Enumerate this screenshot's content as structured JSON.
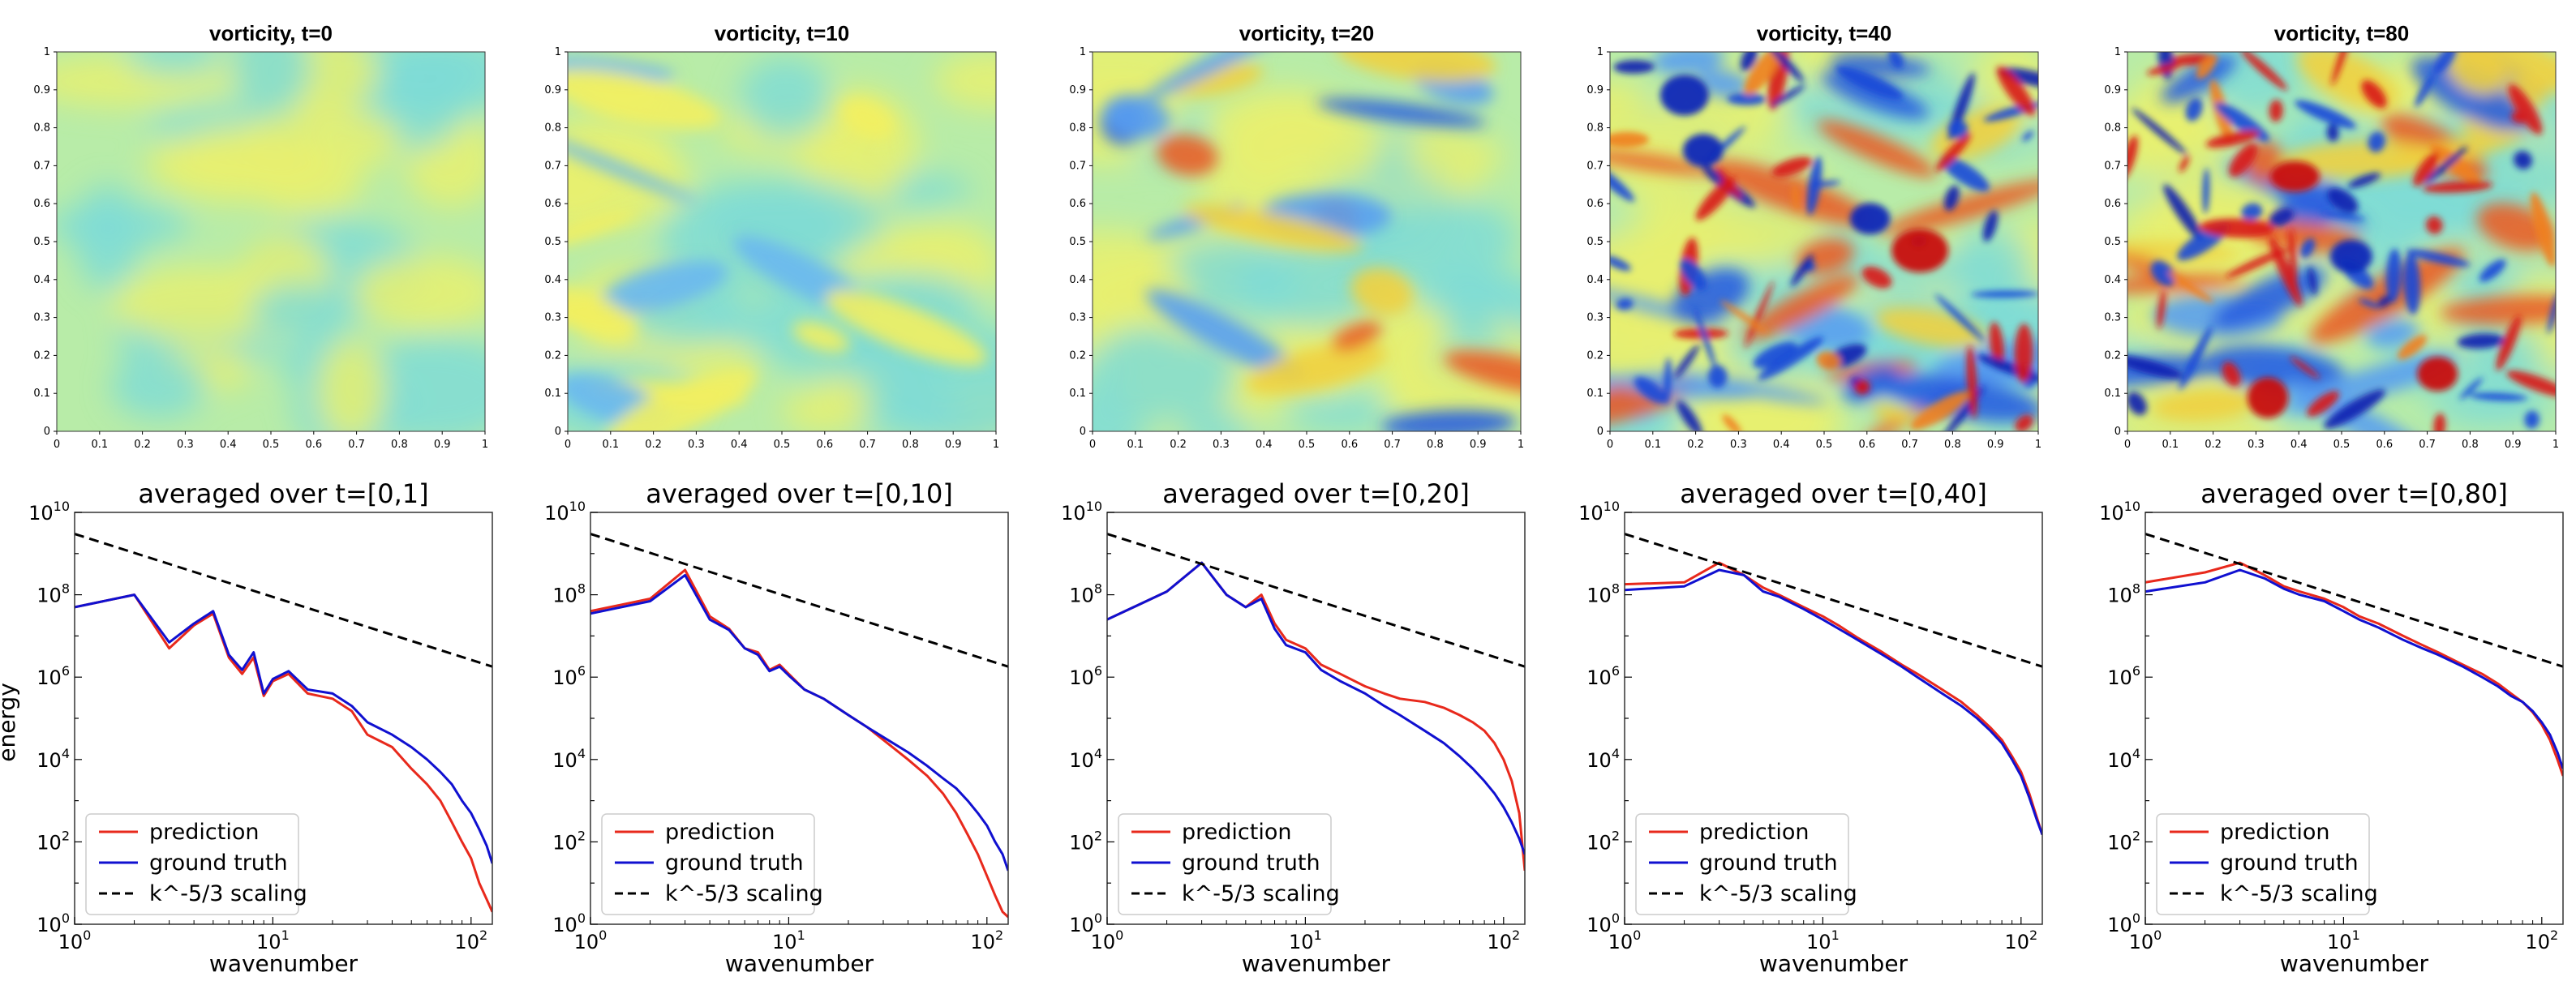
{
  "chart_data": {
    "vorticity_panels": [
      {
        "type": "heatmap",
        "title": "vorticity, t=0",
        "xlim": [
          0,
          1
        ],
        "ylim": [
          0,
          1
        ],
        "xticks": [
          "0",
          "0.1",
          "0.2",
          "0.3",
          "0.4",
          "0.5",
          "0.6",
          "0.7",
          "0.8",
          "0.9",
          "1"
        ],
        "yticks": [
          "0",
          "0.1",
          "0.2",
          "0.3",
          "0.4",
          "0.5",
          "0.6",
          "0.7",
          "0.8",
          "0.9",
          "1"
        ],
        "intensity": 0.15
      },
      {
        "type": "heatmap",
        "title": "vorticity, t=10",
        "xlim": [
          0,
          1
        ],
        "ylim": [
          0,
          1
        ],
        "xticks": [
          "0",
          "0.1",
          "0.2",
          "0.3",
          "0.4",
          "0.5",
          "0.6",
          "0.7",
          "0.8",
          "0.9",
          "1"
        ],
        "yticks": [
          "0",
          "0.1",
          "0.2",
          "0.3",
          "0.4",
          "0.5",
          "0.6",
          "0.7",
          "0.8",
          "0.9",
          "1"
        ],
        "intensity": 0.3
      },
      {
        "type": "heatmap",
        "title": "vorticity, t=20",
        "xlim": [
          0,
          1
        ],
        "ylim": [
          0,
          1
        ],
        "xticks": [
          "0",
          "0.1",
          "0.2",
          "0.3",
          "0.4",
          "0.5",
          "0.6",
          "0.7",
          "0.8",
          "0.9",
          "1"
        ],
        "yticks": [
          "0",
          "0.1",
          "0.2",
          "0.3",
          "0.4",
          "0.5",
          "0.6",
          "0.7",
          "0.8",
          "0.9",
          "1"
        ],
        "intensity": 0.5
      },
      {
        "type": "heatmap",
        "title": "vorticity, t=40",
        "xlim": [
          0,
          1
        ],
        "ylim": [
          0,
          1
        ],
        "xticks": [
          "0",
          "0.1",
          "0.2",
          "0.3",
          "0.4",
          "0.5",
          "0.6",
          "0.7",
          "0.8",
          "0.9",
          "1"
        ],
        "yticks": [
          "0",
          "0.1",
          "0.2",
          "0.3",
          "0.4",
          "0.5",
          "0.6",
          "0.7",
          "0.8",
          "0.9",
          "1"
        ],
        "intensity": 0.9
      },
      {
        "type": "heatmap",
        "title": "vorticity, t=80",
        "xlim": [
          0,
          1
        ],
        "ylim": [
          0,
          1
        ],
        "xticks": [
          "0",
          "0.1",
          "0.2",
          "0.3",
          "0.4",
          "0.5",
          "0.6",
          "0.7",
          "0.8",
          "0.9",
          "1"
        ],
        "yticks": [
          "0",
          "0.1",
          "0.2",
          "0.3",
          "0.4",
          "0.5",
          "0.6",
          "0.7",
          "0.8",
          "0.9",
          "1"
        ],
        "intensity": 1.0
      }
    ],
    "spectrum_panels": [
      {
        "type": "line",
        "title": "averaged over t=[0,1]",
        "xlabel": "wavenumber",
        "ylabel": "energy",
        "xscale": "log",
        "yscale": "log",
        "xlim": [
          1,
          128
        ],
        "ylim": [
          1,
          10000000000.0
        ],
        "legend_position": "lower-left",
        "series": [
          {
            "name": "prediction",
            "color": "#e8291c",
            "k": [
              1,
              2,
              3,
              4,
              5,
              6,
              7,
              8,
              9,
              10,
              12,
              15,
              20,
              25,
              30,
              40,
              50,
              60,
              70,
              80,
              90,
              100,
              110,
              120,
              128
            ],
            "E": [
              50000000.0,
              100000000.0,
              5000000.0,
              18000000.0,
              35000000.0,
              3000000.0,
              1200000.0,
              3000000.0,
              350000.0,
              800000.0,
              1200000.0,
              400000.0,
              300000.0,
              150000.0,
              40000.0,
              20000.0,
              6000.0,
              2500.0,
              1000.0,
              300,
              100,
              40,
              10,
              4,
              2
            ]
          },
          {
            "name": "ground truth",
            "color": "#1010d0",
            "k": [
              1,
              2,
              3,
              4,
              5,
              6,
              7,
              8,
              9,
              10,
              12,
              15,
              20,
              25,
              30,
              40,
              50,
              60,
              70,
              80,
              90,
              100,
              110,
              120,
              128
            ],
            "E": [
              50000000.0,
              100000000.0,
              7000000.0,
              20000000.0,
              40000000.0,
              3500000.0,
              1500000.0,
              4000000.0,
              400000.0,
              900000.0,
              1400000.0,
              500000.0,
              400000.0,
              200000.0,
              80000.0,
              40000.0,
              20000.0,
              10000.0,
              5000.0,
              2500.0,
              1000.0,
              500,
              200,
              80,
              30
            ]
          },
          {
            "name": "k^-5/3 scaling",
            "color": "#000000",
            "dash": true,
            "k": [
              1,
              128
            ],
            "E": [
              3000000000.0,
              1800000.0
            ]
          }
        ]
      },
      {
        "type": "line",
        "title": "averaged over t=[0,10]",
        "xlabel": "wavenumber",
        "ylabel": "",
        "xscale": "log",
        "yscale": "log",
        "xlim": [
          1,
          128
        ],
        "ylim": [
          1,
          10000000000.0
        ],
        "legend_position": "lower-left",
        "series": [
          {
            "name": "prediction",
            "color": "#e8291c",
            "k": [
              1,
              2,
              3,
              4,
              5,
              6,
              7,
              8,
              9,
              10,
              12,
              15,
              20,
              25,
              30,
              40,
              50,
              60,
              70,
              80,
              90,
              100,
              110,
              120,
              128
            ],
            "E": [
              40000000.0,
              80000000.0,
              400000000.0,
              30000000.0,
              15000000.0,
              5000000.0,
              4000000.0,
              1500000.0,
              2000000.0,
              1200000.0,
              500000.0,
              300000.0,
              120000.0,
              60000.0,
              30000.0,
              10000.0,
              4000.0,
              1500.0,
              500,
              150,
              50,
              15,
              5,
              2,
              1.5
            ]
          },
          {
            "name": "ground truth",
            "color": "#1010d0",
            "k": [
              1,
              2,
              3,
              4,
              5,
              6,
              7,
              8,
              9,
              10,
              12,
              15,
              20,
              25,
              30,
              40,
              50,
              60,
              70,
              80,
              90,
              100,
              110,
              120,
              128
            ],
            "E": [
              35000000.0,
              70000000.0,
              300000000.0,
              25000000.0,
              14000000.0,
              5000000.0,
              3500000.0,
              1400000.0,
              1800000.0,
              1100000.0,
              500000.0,
              300000.0,
              120000.0,
              60000.0,
              35000.0,
              15000.0,
              7000.0,
              3500.0,
              2000.0,
              1000.0,
              500,
              250,
              100,
              50,
              20
            ]
          },
          {
            "name": "k^-5/3 scaling",
            "color": "#000000",
            "dash": true,
            "k": [
              1,
              128
            ],
            "E": [
              3000000000.0,
              1800000.0
            ]
          }
        ]
      },
      {
        "type": "line",
        "title": "averaged over t=[0,20]",
        "xlabel": "wavenumber",
        "ylabel": "",
        "xscale": "log",
        "yscale": "log",
        "xlim": [
          1,
          128
        ],
        "ylim": [
          1,
          10000000000.0
        ],
        "legend_position": "lower-left",
        "series": [
          {
            "name": "prediction",
            "color": "#e8291c",
            "k": [
              1,
              2,
              3,
              4,
              5,
              6,
              7,
              8,
              10,
              12,
              15,
              20,
              25,
              30,
              40,
              50,
              60,
              70,
              80,
              90,
              100,
              110,
              120,
              128
            ],
            "E": [
              25000000.0,
              120000000.0,
              600000000.0,
              100000000.0,
              50000000.0,
              100000000.0,
              20000000.0,
              8000000.0,
              5000000.0,
              2000000.0,
              1200000.0,
              600000.0,
              400000.0,
              300000.0,
              250000.0,
              180000.0,
              120000.0,
              80000.0,
              50000.0,
              25000.0,
              10000.0,
              3000.0,
              500,
              20
            ]
          },
          {
            "name": "ground truth",
            "color": "#1010d0",
            "k": [
              1,
              2,
              3,
              4,
              5,
              6,
              7,
              8,
              10,
              12,
              15,
              20,
              25,
              30,
              40,
              50,
              60,
              70,
              80,
              90,
              100,
              110,
              120,
              128
            ],
            "E": [
              25000000.0,
              120000000.0,
              600000000.0,
              100000000.0,
              50000000.0,
              80000000.0,
              15000000.0,
              6000000.0,
              4000000.0,
              1500000.0,
              800000.0,
              400000.0,
              200000.0,
              120000.0,
              50000.0,
              25000.0,
              12000.0,
              6000.0,
              3000.0,
              1500.0,
              700,
              300,
              120,
              50
            ]
          },
          {
            "name": "k^-5/3 scaling",
            "color": "#000000",
            "dash": true,
            "k": [
              1,
              128
            ],
            "E": [
              3000000000.0,
              1800000.0
            ]
          }
        ]
      },
      {
        "type": "line",
        "title": "averaged over t=[0,40]",
        "xlabel": "wavenumber",
        "ylabel": "",
        "xscale": "log",
        "yscale": "log",
        "xlim": [
          1,
          128
        ],
        "ylim": [
          1,
          10000000000.0
        ],
        "legend_position": "lower-left",
        "series": [
          {
            "name": "prediction",
            "color": "#e8291c",
            "k": [
              1,
              2,
              3,
              4,
              5,
              6,
              8,
              10,
              12,
              15,
              20,
              25,
              30,
              40,
              50,
              60,
              70,
              80,
              90,
              100,
              110,
              120,
              128
            ],
            "E": [
              180000000.0,
              200000000.0,
              600000000.0,
              300000000.0,
              150000000.0,
              100000000.0,
              50000000.0,
              30000000.0,
              18000000.0,
              9000000.0,
              4000000.0,
              2000000.0,
              1200000.0,
              500000.0,
              250000.0,
              120000.0,
              60000.0,
              30000.0,
              12000.0,
              5000.0,
              1500.0,
              400,
              150
            ]
          },
          {
            "name": "ground truth",
            "color": "#1010d0",
            "k": [
              1,
              2,
              3,
              4,
              5,
              6,
              8,
              10,
              12,
              15,
              20,
              25,
              30,
              40,
              50,
              60,
              70,
              80,
              90,
              100,
              110,
              120,
              128
            ],
            "E": [
              130000000.0,
              160000000.0,
              400000000.0,
              300000000.0,
              120000000.0,
              90000000.0,
              45000000.0,
              25000000.0,
              15000000.0,
              8000000.0,
              3500000.0,
              1800000.0,
              1000000.0,
              400000.0,
              200000.0,
              100000.0,
              50000.0,
              25000.0,
              10000.0,
              4000.0,
              1200.0,
              350,
              150
            ]
          },
          {
            "name": "k^-5/3 scaling",
            "color": "#000000",
            "dash": true,
            "k": [
              1,
              128
            ],
            "E": [
              3000000000.0,
              1800000.0
            ]
          }
        ]
      },
      {
        "type": "line",
        "title": "averaged over t=[0,80]",
        "xlabel": "wavenumber",
        "ylabel": "",
        "xscale": "log",
        "yscale": "log",
        "xlim": [
          1,
          128
        ],
        "ylim": [
          1,
          10000000000.0
        ],
        "legend_position": "lower-left",
        "series": [
          {
            "name": "prediction",
            "color": "#e8291c",
            "k": [
              1,
              2,
              3,
              4,
              5,
              6,
              8,
              10,
              12,
              15,
              20,
              25,
              30,
              40,
              50,
              60,
              70,
              80,
              90,
              100,
              110,
              120,
              128
            ],
            "E": [
              200000000.0,
              350000000.0,
              600000000.0,
              300000000.0,
              160000000.0,
              120000000.0,
              80000000.0,
              50000000.0,
              30000000.0,
              20000000.0,
              10000000.0,
              6000000.0,
              4000000.0,
              2000000.0,
              1200000.0,
              700000.0,
              400000.0,
              250000.0,
              140000.0,
              70000.0,
              30000.0,
              10000.0,
              4000.0
            ]
          },
          {
            "name": "ground truth",
            "color": "#1010d0",
            "k": [
              1,
              2,
              3,
              4,
              5,
              6,
              8,
              10,
              12,
              15,
              20,
              25,
              30,
              40,
              50,
              60,
              70,
              80,
              90,
              100,
              110,
              120,
              128
            ],
            "E": [
              120000000.0,
              200000000.0,
              400000000.0,
              250000000.0,
              140000000.0,
              100000000.0,
              70000000.0,
              40000000.0,
              25000000.0,
              16000000.0,
              8000000.0,
              5000000.0,
              3500000.0,
              1800000.0,
              1000000.0,
              600000.0,
              350000.0,
              250000.0,
              150000.0,
              80000.0,
              40000.0,
              15000.0,
              6000.0
            ]
          },
          {
            "name": "k^-5/3 scaling",
            "color": "#000000",
            "dash": true,
            "k": [
              1,
              128
            ],
            "E": [
              3000000000.0,
              1800000.0
            ]
          }
        ]
      }
    ]
  }
}
